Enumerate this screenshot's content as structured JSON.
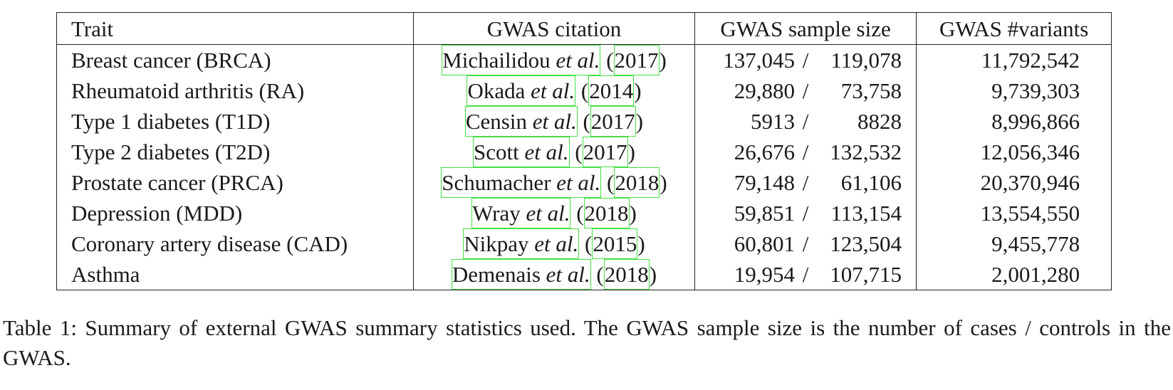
{
  "table": {
    "headers": [
      "Trait",
      "GWAS citation",
      "GWAS sample size",
      "GWAS #variants"
    ],
    "rows": [
      {
        "trait": "Breast cancer (BRCA)",
        "author": "Michailidou",
        "etal": "et al.",
        "year": "2017",
        "cases": "137,045",
        "controls": "119,078",
        "variants": "11,792,542"
      },
      {
        "trait": "Rheumatoid arthritis (RA)",
        "author": "Okada",
        "etal": "et al.",
        "year": "2014",
        "cases": "29,880",
        "controls": "73,758",
        "variants": "9,739,303"
      },
      {
        "trait": "Type 1 diabetes (T1D)",
        "author": "Censin",
        "etal": "et al.",
        "year": "2017",
        "cases": "5913",
        "controls": "8828",
        "variants": "8,996,866"
      },
      {
        "trait": "Type 2 diabetes (T2D)",
        "author": "Scott",
        "etal": "et al.",
        "year": "2017",
        "cases": "26,676",
        "controls": "132,532",
        "variants": "12,056,346"
      },
      {
        "trait": "Prostate cancer (PRCA)",
        "author": "Schumacher",
        "etal": "et al.",
        "year": "2018",
        "cases": "79,148",
        "controls": "61,106",
        "variants": "20,370,946"
      },
      {
        "trait": "Depression (MDD)",
        "author": "Wray",
        "etal": "et al.",
        "year": "2018",
        "cases": "59,851",
        "controls": "113,154",
        "variants": "13,554,550"
      },
      {
        "trait": "Coronary artery disease (CAD)",
        "author": "Nikpay",
        "etal": "et al.",
        "year": "2015",
        "cases": "60,801",
        "controls": "123,504",
        "variants": "9,455,778"
      },
      {
        "trait": "Asthma",
        "author": "Demenais",
        "etal": "et al.",
        "year": "2018",
        "cases": "19,954",
        "controls": "107,715",
        "variants": "2,001,280"
      }
    ]
  },
  "caption": "Table 1: Summary of external GWAS summary statistics used. The GWAS sample size is the number of cases / controls in the GWAS.",
  "colors": {
    "citation_link_box": "#44e044",
    "rule": "#222222"
  }
}
